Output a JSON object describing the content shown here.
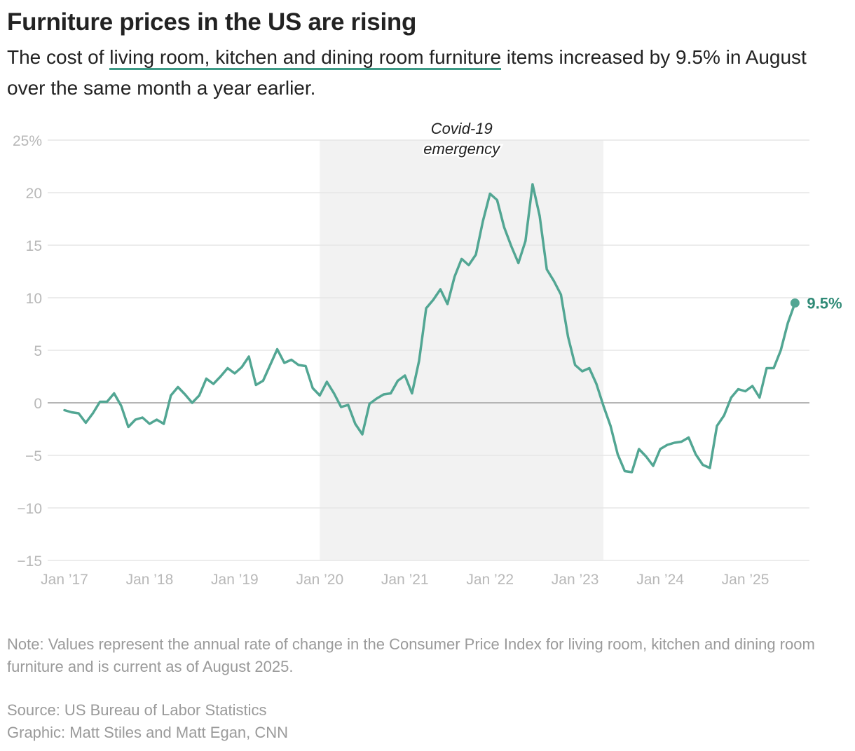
{
  "title": "Furniture prices in the US are rising",
  "subtitle": {
    "before": "The cost of ",
    "highlight": "living room, kitchen and dining room furniture",
    "after": " items increased by 9.5% in August over the same month a year earlier."
  },
  "note": "Note: Values represent the annual rate of change in the Consumer Price Index for living room, kitchen and dining room furniture and is current as of August 2025.",
  "source": "Source: US Bureau of Labor Statistics",
  "credit": "Graphic: Matt Stiles and Matt Egan, CNN",
  "colors": {
    "line": "#52a693",
    "label": "#2f8a76",
    "shade": "#f2f2f2",
    "grid": "#e6e6e6",
    "zero": "#b5b5b5"
  },
  "chart_data": {
    "type": "line",
    "start": "2017-01",
    "frequency": "monthly",
    "values": [
      -0.7,
      -0.9,
      -1.0,
      -1.9,
      -1.0,
      0.1,
      0.1,
      0.9,
      -0.3,
      -2.3,
      -1.6,
      -1.4,
      -2.0,
      -1.6,
      -2.0,
      0.7,
      1.5,
      0.8,
      0.0,
      0.7,
      2.3,
      1.8,
      2.5,
      3.3,
      2.8,
      3.4,
      4.4,
      1.7,
      2.1,
      3.6,
      5.1,
      3.8,
      4.1,
      3.6,
      3.5,
      1.4,
      0.7,
      2.0,
      0.9,
      -0.4,
      -0.2,
      -2.0,
      -3.0,
      -0.1,
      0.4,
      0.8,
      0.9,
      2.1,
      2.6,
      0.9,
      4.0,
      9.0,
      9.8,
      10.8,
      9.4,
      12.0,
      13.7,
      13.1,
      14.1,
      17.3,
      19.9,
      19.3,
      16.7,
      14.9,
      13.3,
      15.4,
      20.8,
      17.8,
      12.7,
      11.6,
      10.3,
      6.3,
      3.6,
      3.0,
      3.3,
      1.8,
      -0.3,
      -2.2,
      -4.9,
      -6.5,
      -6.6,
      -4.4,
      -5.1,
      -6.0,
      -4.4,
      -4.0,
      -3.8,
      -3.7,
      -3.3,
      -4.9,
      -5.9,
      -6.2,
      -2.2,
      -1.2,
      0.5,
      1.3,
      1.1,
      1.6,
      0.5,
      3.3,
      3.3,
      5.0,
      7.6,
      9.5
    ],
    "ylim": [
      -15,
      25
    ],
    "yticks": [
      25,
      20,
      15,
      10,
      5,
      0,
      -5,
      -10,
      -15
    ],
    "ytick_labels": [
      "25%",
      "20",
      "15",
      "10",
      "5",
      "0",
      "−5",
      "−10",
      "−15"
    ],
    "xtick_labels": [
      "Jan ’17",
      "Jan ’18",
      "Jan ’19",
      "Jan ’20",
      "Jan ’21",
      "Jan ’22",
      "Jan ’23",
      "Jan ’24",
      "Jan ’25"
    ],
    "grid": true,
    "end_label": "9.5%",
    "shaded_period": {
      "from": "2020-01",
      "to": "2023-05",
      "label_line1": "Covid-19",
      "label_line2": "emergency"
    }
  }
}
